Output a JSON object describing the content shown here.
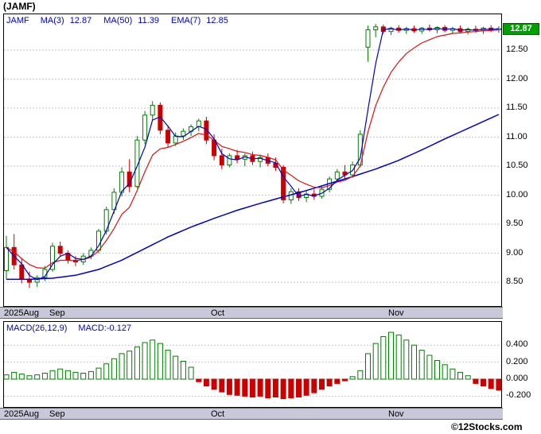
{
  "page": {
    "title": "(JAMF)",
    "copyright": "©12Stocks.com"
  },
  "main_chart": {
    "legend": {
      "symbol": "JAMF",
      "ma3_label": "MA(3)",
      "ma3_value": "12.87",
      "ma50_label": "MA(50)",
      "ma50_value": "11.39",
      "ema7_label": "EMA(7)",
      "ema7_value": "12.85"
    },
    "last_price_label": "12.87",
    "price_ticks": [
      12.5,
      12.0,
      11.5,
      11.0,
      10.5,
      10.0,
      9.5,
      9.0,
      8.5
    ],
    "colors": {
      "up": "#008000",
      "down": "#cc0000",
      "ma_line": "#0000cc",
      "ema_line": "#dd1111",
      "price_box_bg": "#00a000",
      "strip_bg": "#c8c8da",
      "legend_text": "#0000cc"
    }
  },
  "macd_panel": {
    "legend_label": "MACD(26,12,9)",
    "value_label": "MACD:-0.127",
    "ticks": [
      0.4,
      0.2,
      0.0,
      -0.2
    ]
  },
  "chart_data": [
    {
      "type": "candlestick",
      "symbol": "JAMF",
      "months": [
        {
          "label": "2025Aug",
          "day": 0
        },
        {
          "label": "Sep",
          "day": 6
        },
        {
          "label": "Oct",
          "day": 27
        },
        {
          "label": "Nov",
          "day": 50
        }
      ],
      "ylim": [
        8.09,
        13.13
      ],
      "last_close": 12.87,
      "overlays": [
        {
          "name": "MA(3)",
          "period": 3,
          "last": 12.87,
          "color": "#0000cc"
        },
        {
          "name": "MA(50)",
          "period": 50,
          "last": 11.39,
          "color": "#0000cc",
          "points": [
            [
              0,
              8.55
            ],
            [
              3,
              8.55
            ],
            [
              6,
              8.57
            ],
            [
              9,
              8.62
            ],
            [
              12,
              8.72
            ],
            [
              15,
              8.88
            ],
            [
              18,
              9.08
            ],
            [
              21,
              9.28
            ],
            [
              24,
              9.45
            ],
            [
              27,
              9.6
            ],
            [
              30,
              9.74
            ],
            [
              33,
              9.86
            ],
            [
              36,
              9.97
            ],
            [
              39,
              10.08
            ],
            [
              42,
              10.2
            ],
            [
              45,
              10.32
            ],
            [
              48,
              10.45
            ],
            [
              51,
              10.6
            ],
            [
              54,
              10.78
            ],
            [
              57,
              10.97
            ],
            [
              60,
              11.15
            ],
            [
              62,
              11.27
            ],
            [
              64,
              11.39
            ]
          ]
        },
        {
          "name": "EMA(7)",
          "period": 7,
          "last": 12.85,
          "color": "#dd1111"
        }
      ],
      "ohlc": [
        [
          8.7,
          9.3,
          8.55,
          9.1
        ],
        [
          9.1,
          9.33,
          8.72,
          8.8
        ],
        [
          8.8,
          8.92,
          8.48,
          8.55
        ],
        [
          8.55,
          8.68,
          8.4,
          8.5
        ],
        [
          8.5,
          8.62,
          8.42,
          8.58
        ],
        [
          8.58,
          8.78,
          8.52,
          8.72
        ],
        [
          8.72,
          9.18,
          8.68,
          9.12
        ],
        [
          9.12,
          9.2,
          8.95,
          9.0
        ],
        [
          9.0,
          9.05,
          8.82,
          8.88
        ],
        [
          8.88,
          8.95,
          8.78,
          8.85
        ],
        [
          8.85,
          9.0,
          8.8,
          8.95
        ],
        [
          8.95,
          9.1,
          8.9,
          9.05
        ],
        [
          9.05,
          9.42,
          9.0,
          9.38
        ],
        [
          9.38,
          9.8,
          9.32,
          9.75
        ],
        [
          9.75,
          10.12,
          9.68,
          10.05
        ],
        [
          10.05,
          10.48,
          9.98,
          10.4
        ],
        [
          10.4,
          10.62,
          10.05,
          10.15
        ],
        [
          10.15,
          11.02,
          10.12,
          10.95
        ],
        [
          10.95,
          11.45,
          10.88,
          11.38
        ],
        [
          11.38,
          11.62,
          11.3,
          11.55
        ],
        [
          11.55,
          11.6,
          11.05,
          11.12
        ],
        [
          11.12,
          11.2,
          10.82,
          10.9
        ],
        [
          10.9,
          11.08,
          10.85,
          11.02
        ],
        [
          11.02,
          11.15,
          10.95,
          11.1
        ],
        [
          11.1,
          11.22,
          11.02,
          11.18
        ],
        [
          11.18,
          11.32,
          11.1,
          11.28
        ],
        [
          11.28,
          11.35,
          10.88,
          10.95
        ],
        [
          10.95,
          11.05,
          10.6,
          10.68
        ],
        [
          10.68,
          10.8,
          10.45,
          10.52
        ],
        [
          10.52,
          10.72,
          10.48,
          10.68
        ],
        [
          10.68,
          10.78,
          10.55,
          10.62
        ],
        [
          10.62,
          10.72,
          10.5,
          10.68
        ],
        [
          10.68,
          10.75,
          10.52,
          10.58
        ],
        [
          10.58,
          10.7,
          10.48,
          10.65
        ],
        [
          10.65,
          10.72,
          10.5,
          10.55
        ],
        [
          10.55,
          10.65,
          10.42,
          10.48
        ],
        [
          10.48,
          10.52,
          9.86,
          9.92
        ],
        [
          9.92,
          10.12,
          9.85,
          10.06
        ],
        [
          10.06,
          10.12,
          9.9,
          9.96
        ],
        [
          9.96,
          10.08,
          9.88,
          10.02
        ],
        [
          10.02,
          10.1,
          9.92,
          9.98
        ],
        [
          9.98,
          10.15,
          9.94,
          10.1
        ],
        [
          10.1,
          10.32,
          10.05,
          10.28
        ],
        [
          10.28,
          10.45,
          10.22,
          10.4
        ],
        [
          10.4,
          10.52,
          10.28,
          10.35
        ],
        [
          10.35,
          10.58,
          10.3,
          10.52
        ],
        [
          10.52,
          11.12,
          10.48,
          11.05
        ],
        [
          12.55,
          12.92,
          12.3,
          12.85
        ],
        [
          12.85,
          12.95,
          12.72,
          12.9
        ],
        [
          12.9,
          12.94,
          12.78,
          12.82
        ],
        [
          12.82,
          12.9,
          12.76,
          12.88
        ],
        [
          12.88,
          12.93,
          12.8,
          12.84
        ],
        [
          12.84,
          12.9,
          12.78,
          12.87
        ],
        [
          12.87,
          12.92,
          12.8,
          12.83
        ],
        [
          12.83,
          12.9,
          12.78,
          12.88
        ],
        [
          12.88,
          12.94,
          12.82,
          12.85
        ],
        [
          12.85,
          12.91,
          12.79,
          12.89
        ],
        [
          12.89,
          12.93,
          12.81,
          12.84
        ],
        [
          12.84,
          12.9,
          12.78,
          12.87
        ],
        [
          12.87,
          12.92,
          12.8,
          12.82
        ],
        [
          12.82,
          12.89,
          12.77,
          12.86
        ],
        [
          12.86,
          12.92,
          12.8,
          12.84
        ],
        [
          12.84,
          12.9,
          12.78,
          12.88
        ],
        [
          12.88,
          12.93,
          12.81,
          12.85
        ],
        [
          12.85,
          12.91,
          12.8,
          12.87
        ]
      ]
    },
    {
      "type": "bar",
      "name": "MACD(26,12,9)",
      "last": -0.127,
      "ylim": [
        -0.33,
        0.67
      ],
      "values": [
        0.05,
        0.08,
        0.06,
        0.04,
        0.05,
        0.07,
        0.1,
        0.12,
        0.1,
        0.08,
        0.07,
        0.09,
        0.13,
        0.18,
        0.24,
        0.3,
        0.33,
        0.38,
        0.43,
        0.46,
        0.42,
        0.34,
        0.27,
        0.21,
        0.14,
        -0.03,
        -0.08,
        -0.12,
        -0.15,
        -0.18,
        -0.19,
        -0.2,
        -0.21,
        -0.2,
        -0.22,
        -0.21,
        -0.23,
        -0.22,
        -0.21,
        -0.19,
        -0.16,
        -0.12,
        -0.08,
        -0.05,
        -0.02,
        0.03,
        0.1,
        0.3,
        0.42,
        0.5,
        0.55,
        0.52,
        0.46,
        0.4,
        0.34,
        0.28,
        0.22,
        0.17,
        0.12,
        0.08,
        0.04,
        -0.05,
        -0.08,
        -0.11,
        -0.13
      ]
    }
  ]
}
